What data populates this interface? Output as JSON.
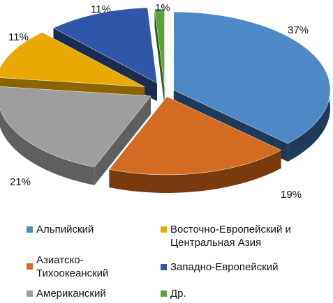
{
  "chart_data": {
    "type": "pie",
    "style": "3d-exploded",
    "title": "",
    "legend_position": "bottom",
    "slices": [
      {
        "name": "Альпийский",
        "value": 37,
        "label": "37%",
        "color": "#4f88c6",
        "side_color": "#1f3a5a"
      },
      {
        "name": "Азиатско-\nТихоокеанский",
        "value": 19,
        "label": "19%",
        "color": "#d46b23",
        "side_color": "#7a3a0f"
      },
      {
        "name": "Американский",
        "value": 21,
        "label": "21%",
        "color": "#9e9e9e",
        "side_color": "#5f5f5f"
      },
      {
        "name": "Восточно-Европейский и\nЦентральная Азия",
        "value": 11,
        "label": "11%",
        "color": "#e8aa00",
        "side_color": "#8a6500"
      },
      {
        "name": "Западно-Европейский",
        "value": 11,
        "label": "11%",
        "color": "#2f56a8",
        "side_color": "#1a2c52"
      },
      {
        "name": "Др.",
        "value": 1,
        "label": "1%",
        "color": "#5ea33a",
        "side_color": "#2f5a1d"
      }
    ]
  }
}
